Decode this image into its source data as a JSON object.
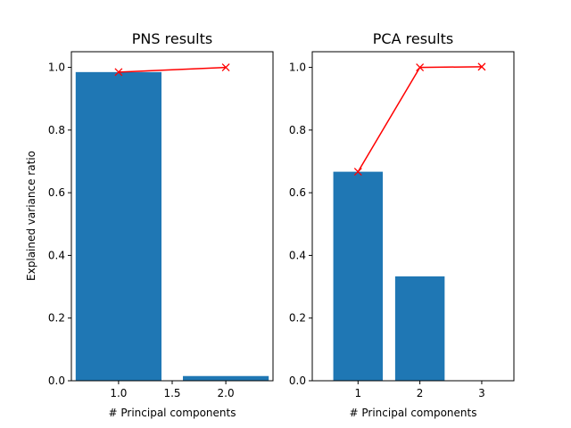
{
  "chart_data": [
    {
      "type": "bar",
      "title": "PNS results",
      "xlabel": "# Principal components",
      "ylabel": "Explained variance ratio",
      "xlim": [
        0.56,
        2.44
      ],
      "ylim": [
        0.0,
        1.05
      ],
      "x_ticks": [
        1.0,
        1.5,
        2.0
      ],
      "x_tick_labels": [
        "1.0",
        "1.5",
        "2.0"
      ],
      "y_ticks": [
        0.0,
        0.2,
        0.4,
        0.6,
        0.8,
        1.0
      ],
      "y_tick_labels": [
        "0.0",
        "0.2",
        "0.4",
        "0.6",
        "0.8",
        "1.0"
      ],
      "bars": {
        "x": [
          1.0,
          2.0
        ],
        "values": [
          0.985,
          0.015
        ],
        "width": 0.8,
        "color": "#1f77b4"
      },
      "cumulative_line": {
        "x": [
          1.0,
          2.0
        ],
        "values": [
          0.985,
          1.0
        ],
        "color": "#ff0000",
        "marker": "x"
      }
    },
    {
      "type": "bar",
      "title": "PCA results",
      "xlabel": "# Principal components",
      "ylabel": "",
      "xlim": [
        0.26,
        3.52
      ],
      "ylim": [
        0.0,
        1.05
      ],
      "x_ticks": [
        1,
        2,
        3
      ],
      "x_tick_labels": [
        "1",
        "2",
        "3"
      ],
      "y_ticks": [
        0.0,
        0.2,
        0.4,
        0.6,
        0.8,
        1.0
      ],
      "y_tick_labels": [
        "0.0",
        "0.2",
        "0.4",
        "0.6",
        "0.8",
        "1.0"
      ],
      "bars": {
        "x": [
          1,
          2,
          3
        ],
        "values": [
          0.667,
          0.333,
          0.0
        ],
        "width": 0.8,
        "color": "#1f77b4"
      },
      "cumulative_line": {
        "x": [
          1,
          2,
          3
        ],
        "values": [
          0.667,
          1.0,
          1.002
        ],
        "color": "#ff0000",
        "marker": "x"
      }
    }
  ]
}
